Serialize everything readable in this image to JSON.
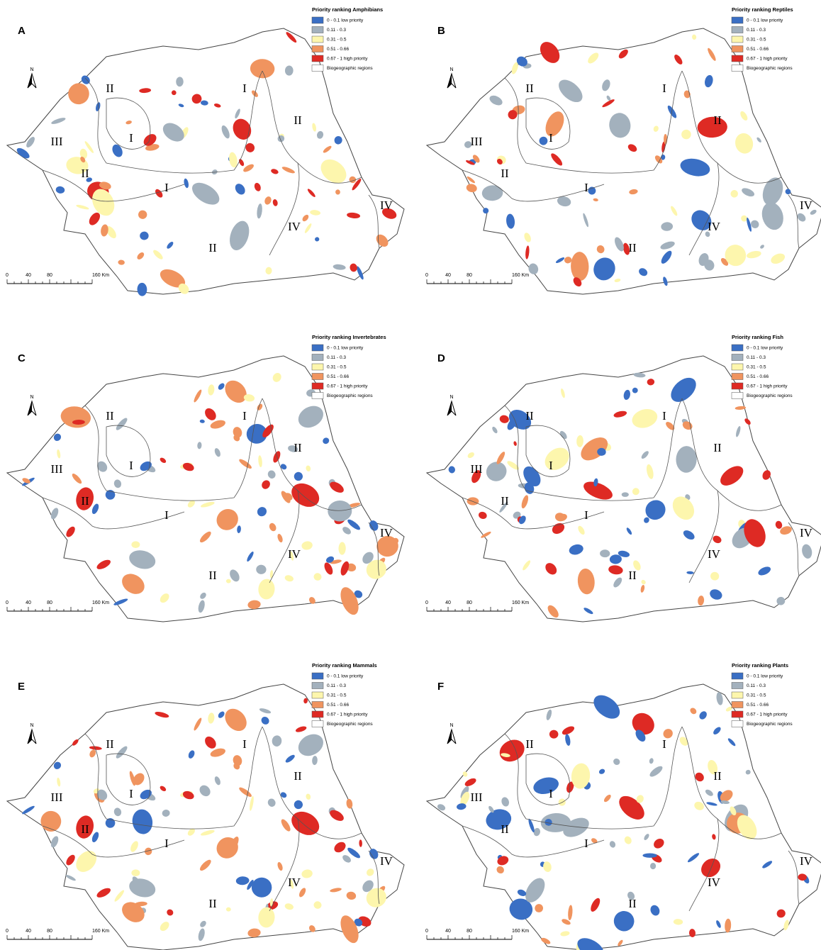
{
  "panels": [
    {
      "letter": "A",
      "legend_title": "Priority ranking Amphibians"
    },
    {
      "letter": "B",
      "legend_title": "Priority ranking Reptiles"
    },
    {
      "letter": "C",
      "legend_title": "Priority ranking Invertebrates"
    },
    {
      "letter": "D",
      "legend_title": "Priority ranking Fish"
    },
    {
      "letter": "E",
      "legend_title": "Priority ranking Mammals"
    },
    {
      "letter": "F",
      "legend_title": "Priority ranking Plants"
    }
  ],
  "legend_items": [
    {
      "label": "0 - 0.1 low priority",
      "color": "#3a6fc4"
    },
    {
      "label": "0.11 - 0.3",
      "color": "#a3b1bd"
    },
    {
      "label": "0.31 - 0.5",
      "color": "#fdf6ad"
    },
    {
      "label": "0.51 - 0.66",
      "color": "#f0945f"
    },
    {
      "label": "0.67 - 1 high priority",
      "color": "#de2a24"
    },
    {
      "label": "Biogeographic regions",
      "color": "#ffffff"
    }
  ],
  "region_labels": [
    "II",
    "I",
    "II",
    "III",
    "I",
    "II",
    "I",
    "IV",
    "IV",
    "II"
  ],
  "north": "N",
  "scale_labels": [
    "0",
    "40",
    "80",
    "160 Km"
  ]
}
